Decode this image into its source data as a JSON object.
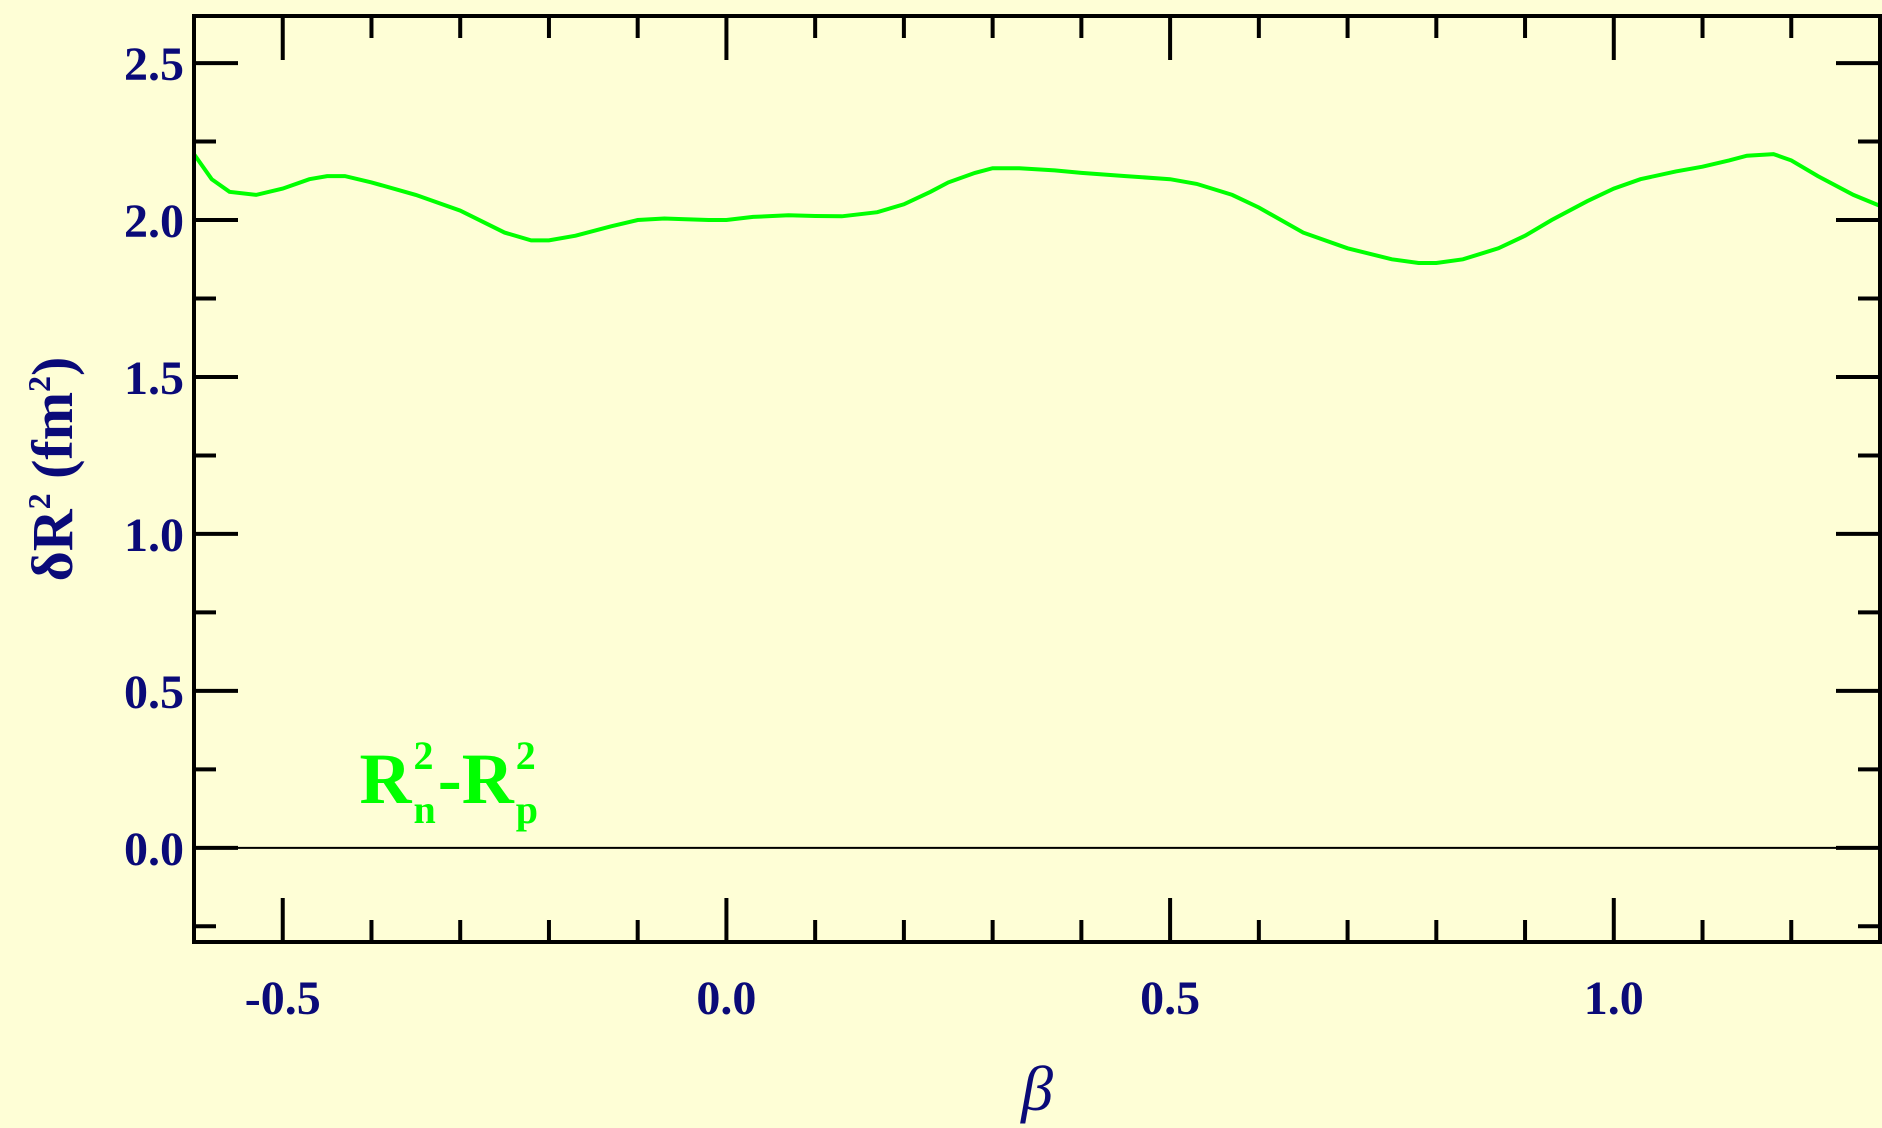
{
  "colors": {
    "background": "#fefed6",
    "axis": "#000000",
    "tick_label": "#0a0a78",
    "series": "#00ff00",
    "zero_line": "#000000"
  },
  "chart_data": {
    "type": "line",
    "title": "",
    "xlabel": "β",
    "ylabel": {
      "prefix": "δR",
      "sup": "2",
      "unit_open": " (fm",
      "unit_sup": "2",
      "unit_close": ")"
    },
    "xlim": [
      -0.6,
      1.3
    ],
    "ylim": [
      -0.3,
      2.65
    ],
    "x_ticks": [
      -0.5,
      0.0,
      0.5,
      1.0
    ],
    "x_tick_labels": [
      "-0.5",
      "0.0",
      "0.5",
      "1.0"
    ],
    "x_minor_step": 0.1,
    "y_ticks": [
      0.0,
      0.5,
      1.0,
      1.5,
      2.0,
      2.5
    ],
    "y_tick_labels": [
      "0.0",
      "0.5",
      "1.0",
      "1.5",
      "2.0",
      "2.5"
    ],
    "y_minor_step": 0.25,
    "grid": false,
    "reference_line": {
      "y": 0.0
    },
    "annotation": {
      "base1": "R",
      "sup1": "2",
      "sub1": "n",
      "dash": "-",
      "base2": "R",
      "sup2": "2",
      "sub2": "p",
      "x": -0.4,
      "y": 0.22
    },
    "series": [
      {
        "x": [
          -0.6,
          -0.58,
          -0.56,
          -0.53,
          -0.5,
          -0.47,
          -0.45,
          -0.43,
          -0.4,
          -0.35,
          -0.3,
          -0.25,
          -0.22,
          -0.2,
          -0.17,
          -0.13,
          -0.1,
          -0.07,
          -0.05,
          -0.02,
          0.0,
          0.03,
          0.07,
          0.1,
          0.13,
          0.17,
          0.2,
          0.23,
          0.25,
          0.28,
          0.3,
          0.33,
          0.37,
          0.4,
          0.45,
          0.5,
          0.53,
          0.57,
          0.6,
          0.65,
          0.7,
          0.75,
          0.78,
          0.8,
          0.83,
          0.87,
          0.9,
          0.93,
          0.97,
          1.0,
          1.03,
          1.07,
          1.1,
          1.13,
          1.15,
          1.18,
          1.2,
          1.23,
          1.27,
          1.3
        ],
        "y": [
          2.21,
          2.13,
          2.09,
          2.08,
          2.1,
          2.13,
          2.14,
          2.14,
          2.12,
          2.08,
          2.03,
          1.96,
          1.935,
          1.935,
          1.95,
          1.98,
          2.0,
          2.005,
          2.003,
          2.0,
          2.0,
          2.01,
          2.015,
          2.013,
          2.012,
          2.025,
          2.05,
          2.09,
          2.12,
          2.15,
          2.165,
          2.165,
          2.158,
          2.15,
          2.14,
          2.13,
          2.115,
          2.08,
          2.04,
          1.96,
          1.91,
          1.875,
          1.863,
          1.863,
          1.875,
          1.91,
          1.95,
          2.0,
          2.06,
          2.1,
          2.13,
          2.155,
          2.17,
          2.19,
          2.205,
          2.21,
          2.19,
          2.14,
          2.08,
          2.045
        ]
      }
    ]
  }
}
